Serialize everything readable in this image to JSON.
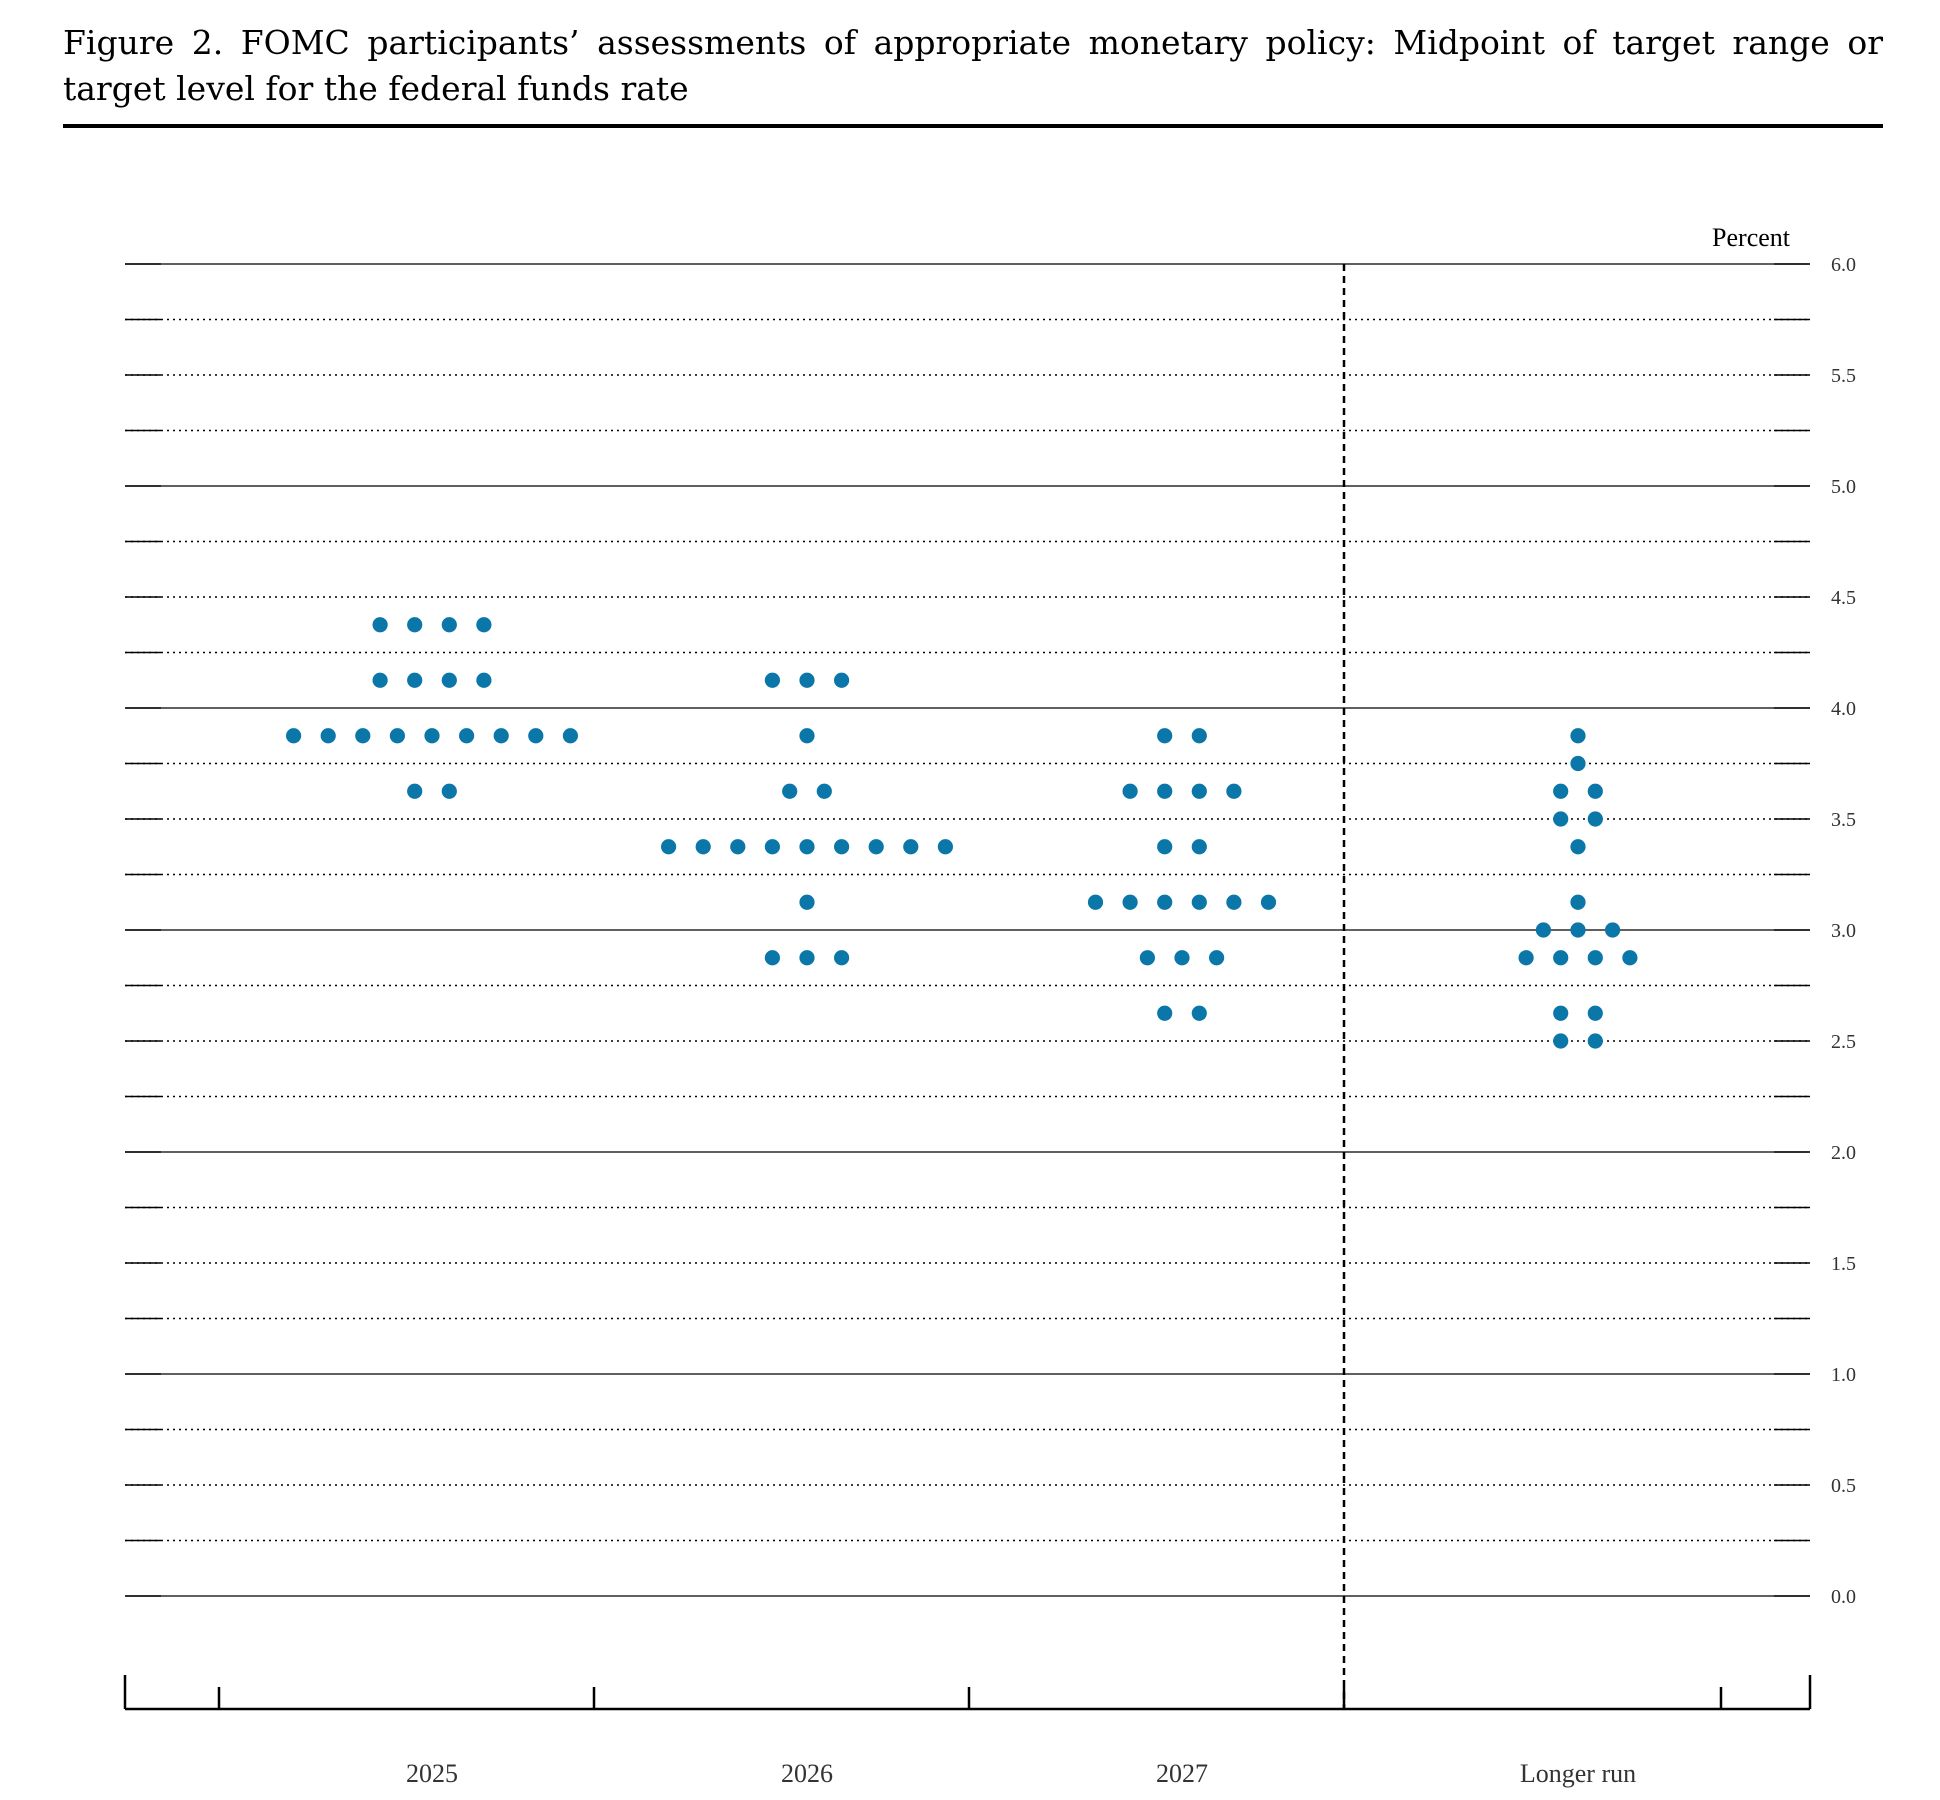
{
  "figure": {
    "title": "Figure 2.  FOMC participants’ assessments of appropriate monetary policy:  Midpoint of target range or target level for the federal funds rate"
  },
  "chart_data": {
    "type": "scatter",
    "title": "Figure 2.  FOMC participants’ assessments of appropriate monetary policy:  Midpoint of target range or target level for the federal funds rate",
    "ylabel": "Percent",
    "xlabel": "",
    "ylim": [
      0,
      6
    ],
    "y_ticks": [
      "0.0",
      "0.5",
      "1.0",
      "1.5",
      "2.0",
      "2.5",
      "3.0",
      "3.5",
      "4.0",
      "4.5",
      "5.0",
      "5.5",
      "6.0"
    ],
    "y_axis_side": "right",
    "grid": "solid at whole percents, dotted at each 0.25",
    "dot_color": "#0b77a8",
    "categories": [
      "2025",
      "2026",
      "2027",
      "Longer run"
    ],
    "series": [
      {
        "category": "2025",
        "points": [
          {
            "y": 4.375,
            "count": 4
          },
          {
            "y": 4.125,
            "count": 4
          },
          {
            "y": 3.875,
            "count": 9
          },
          {
            "y": 3.625,
            "count": 2
          }
        ]
      },
      {
        "category": "2026",
        "points": [
          {
            "y": 4.125,
            "count": 3
          },
          {
            "y": 3.875,
            "count": 1
          },
          {
            "y": 3.625,
            "count": 2
          },
          {
            "y": 3.375,
            "count": 9
          },
          {
            "y": 3.125,
            "count": 1
          },
          {
            "y": 2.875,
            "count": 3
          }
        ]
      },
      {
        "category": "2027",
        "points": [
          {
            "y": 3.875,
            "count": 2
          },
          {
            "y": 3.625,
            "count": 4
          },
          {
            "y": 3.375,
            "count": 2
          },
          {
            "y": 3.125,
            "count": 6
          },
          {
            "y": 2.875,
            "count": 3
          },
          {
            "y": 2.625,
            "count": 2
          }
        ]
      },
      {
        "category": "Longer run",
        "points": [
          {
            "y": 3.875,
            "count": 1
          },
          {
            "y": 3.75,
            "count": 1
          },
          {
            "y": 3.625,
            "count": 2
          },
          {
            "y": 3.5,
            "count": 2
          },
          {
            "y": 3.375,
            "count": 1
          },
          {
            "y": 3.125,
            "count": 1
          },
          {
            "y": 3.0,
            "count": 3
          },
          {
            "y": 2.875,
            "count": 4
          },
          {
            "y": 2.625,
            "count": 2
          },
          {
            "y": 2.5,
            "count": 2
          }
        ]
      }
    ]
  }
}
